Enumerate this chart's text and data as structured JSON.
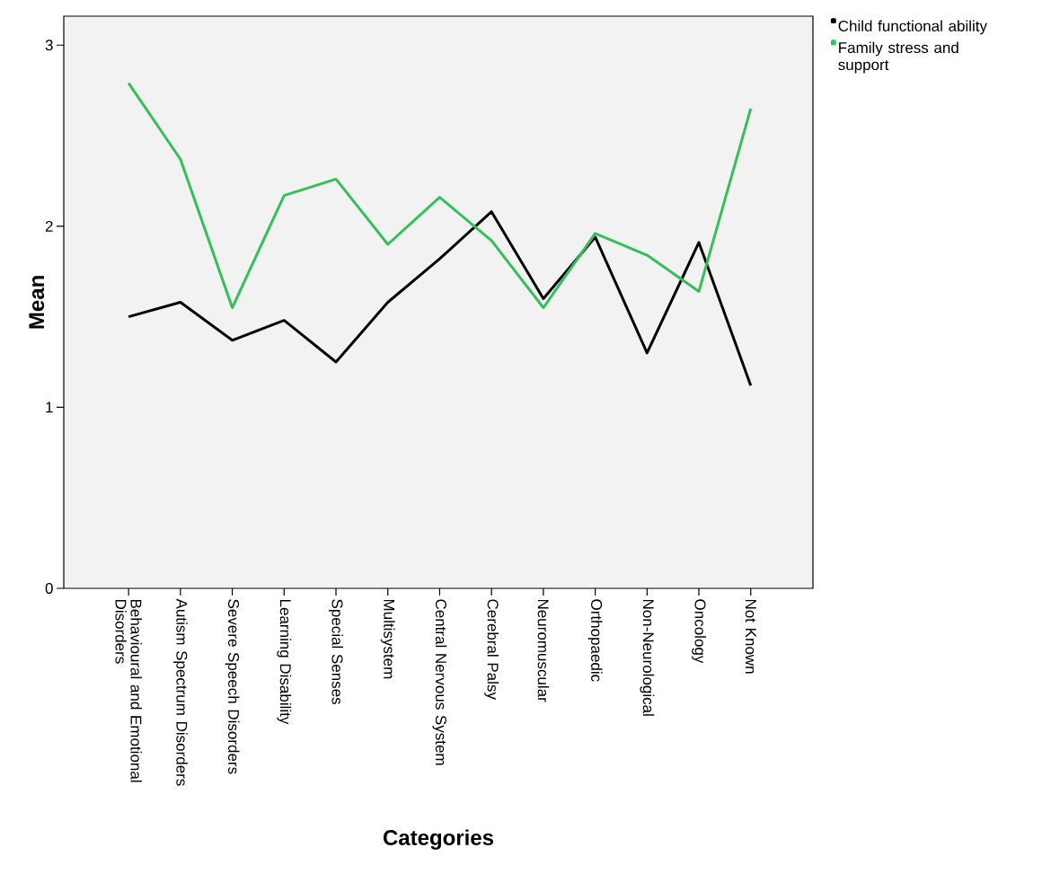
{
  "chart_data": {
    "type": "line",
    "xlabel": "Categories",
    "ylabel": "Mean",
    "categories": [
      "Behavioural and Emotional Disorders",
      "Autism Spectrum Disorders",
      "Severe Speech Disorders",
      "Learning Disability",
      "Special Senses",
      "Multisystem",
      "Central Nervous System",
      "Cerebral Palsy",
      "Neuromuscular",
      "Orthopaedic",
      "Non-Neurological",
      "Oncology",
      "Not Known"
    ],
    "series": [
      {
        "name": "Child functional ability",
        "color": "#000000",
        "values": [
          1.5,
          1.58,
          1.37,
          1.48,
          1.25,
          1.58,
          1.82,
          2.08,
          1.6,
          1.94,
          1.3,
          1.91,
          1.12
        ]
      },
      {
        "name": "Family stress and support",
        "color": "#33c05a",
        "values": [
          2.79,
          2.37,
          1.55,
          2.17,
          2.26,
          1.9,
          2.16,
          1.92,
          1.55,
          1.96,
          1.84,
          1.64,
          2.65
        ]
      }
    ],
    "ylim": [
      0,
      3.16
    ],
    "yticks": [
      0,
      1,
      2,
      3
    ],
    "legend": "top right"
  }
}
